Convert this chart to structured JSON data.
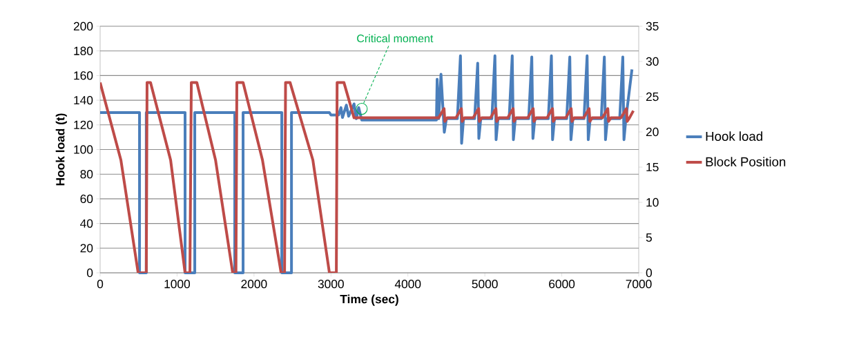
{
  "chart_data": {
    "type": "line",
    "xlabel": "Time (sec)",
    "ylabel": "Hook load (t)",
    "xlim": [
      0,
      7000
    ],
    "xticks": [
      0,
      1000,
      2000,
      3000,
      4000,
      5000,
      6000,
      7000
    ],
    "ylim": [
      0,
      200
    ],
    "yticks": [
      0,
      20,
      40,
      60,
      80,
      100,
      120,
      140,
      160,
      180,
      200
    ],
    "y2lim": [
      0,
      35
    ],
    "y2ticks": [
      0,
      5,
      10,
      15,
      20,
      25,
      30,
      35
    ],
    "grid": "y",
    "legend": "right",
    "marker": "none",
    "line_style": "solid",
    "annotations": [
      {
        "text": "Critical moment",
        "x": 3400,
        "y": 133
      }
    ],
    "series": [
      {
        "name": "Hook load",
        "color": "#4a7ebb",
        "x": [
          0,
          512,
          512,
          600,
          600,
          1104,
          1104,
          1230,
          1230,
          1750,
          1750,
          1858,
          1858,
          2361,
          2361,
          2487,
          2487,
          2980,
          3000,
          3100,
          3130,
          3150,
          3200,
          3230,
          3300,
          3330,
          3360,
          3400,
          4371,
          4380,
          4400,
          4430,
          4473,
          4500,
          4643,
          4683,
          4698,
          4723,
          4867,
          4907,
          4922,
          4947,
          5091,
          5131,
          5146,
          5171,
          5316,
          5356,
          5371,
          5396,
          5570,
          5610,
          5625,
          5650,
          5825,
          5865,
          5880,
          5905,
          6064,
          6104,
          6119,
          6144,
          6289,
          6329,
          6344,
          6369,
          6513,
          6553,
          6568,
          6593,
          6753,
          6793,
          6808,
          6833,
          6912
        ],
        "values": [
          130,
          130,
          0,
          0,
          130,
          130,
          0,
          0,
          130,
          130,
          0,
          0,
          130,
          130,
          0,
          0,
          130,
          130,
          128,
          128,
          134,
          126,
          136,
          127,
          137,
          125,
          134,
          124,
          124,
          157,
          125,
          161,
          114,
          125,
          125,
          176,
          105,
          125,
          125,
          170,
          109,
          125,
          125,
          176,
          108,
          125,
          125,
          176,
          108,
          125,
          125,
          175,
          109,
          125,
          125,
          176,
          108,
          125,
          125,
          175,
          108,
          125,
          125,
          176,
          108,
          125,
          125,
          175,
          108,
          125,
          125,
          175,
          108,
          125,
          165
        ]
      },
      {
        "name": "Block Position",
        "color": "#be4b48",
        "axis": "y2",
        "x": [
          0,
          270,
          494,
          600,
          610,
          655,
          916,
          1104,
          1167,
          1185,
          1257,
          1500,
          1723,
          1765,
          1777,
          1858,
          2110,
          2352,
          2397,
          2410,
          2469,
          2765,
          2980,
          3070,
          3080,
          3169,
          3300,
          4371,
          4400,
          4470,
          4480,
          4510,
          4625,
          4695,
          4705,
          4735,
          4849,
          4919,
          4929,
          4959,
          5074,
          5144,
          5154,
          5184,
          5298,
          5368,
          5378,
          5408,
          5558,
          5628,
          5638,
          5668,
          5809,
          5879,
          5889,
          5919,
          6052,
          6122,
          6132,
          6162,
          6285,
          6355,
          6365,
          6395,
          6528,
          6598,
          6608,
          6638,
          6770,
          6840,
          6850,
          6880,
          6930
        ],
        "values": [
          27,
          16,
          0,
          0,
          27,
          27,
          16,
          0,
          0,
          27,
          27,
          16,
          0,
          0,
          27,
          27,
          16,
          0,
          0,
          27,
          27,
          16,
          0,
          0,
          27,
          27,
          22,
          22,
          22,
          23.3,
          21.5,
          22,
          22,
          23.3,
          21.5,
          22,
          22,
          23.3,
          21.5,
          22,
          22,
          23.3,
          21.5,
          22,
          22,
          23.3,
          21.5,
          22,
          22,
          23.3,
          21.5,
          22,
          22,
          23.3,
          21.5,
          22,
          22,
          23.3,
          21.5,
          22,
          22,
          23.3,
          21.5,
          22,
          22,
          23.3,
          21.5,
          22,
          22,
          23.3,
          21.5,
          22,
          23
        ]
      }
    ]
  }
}
